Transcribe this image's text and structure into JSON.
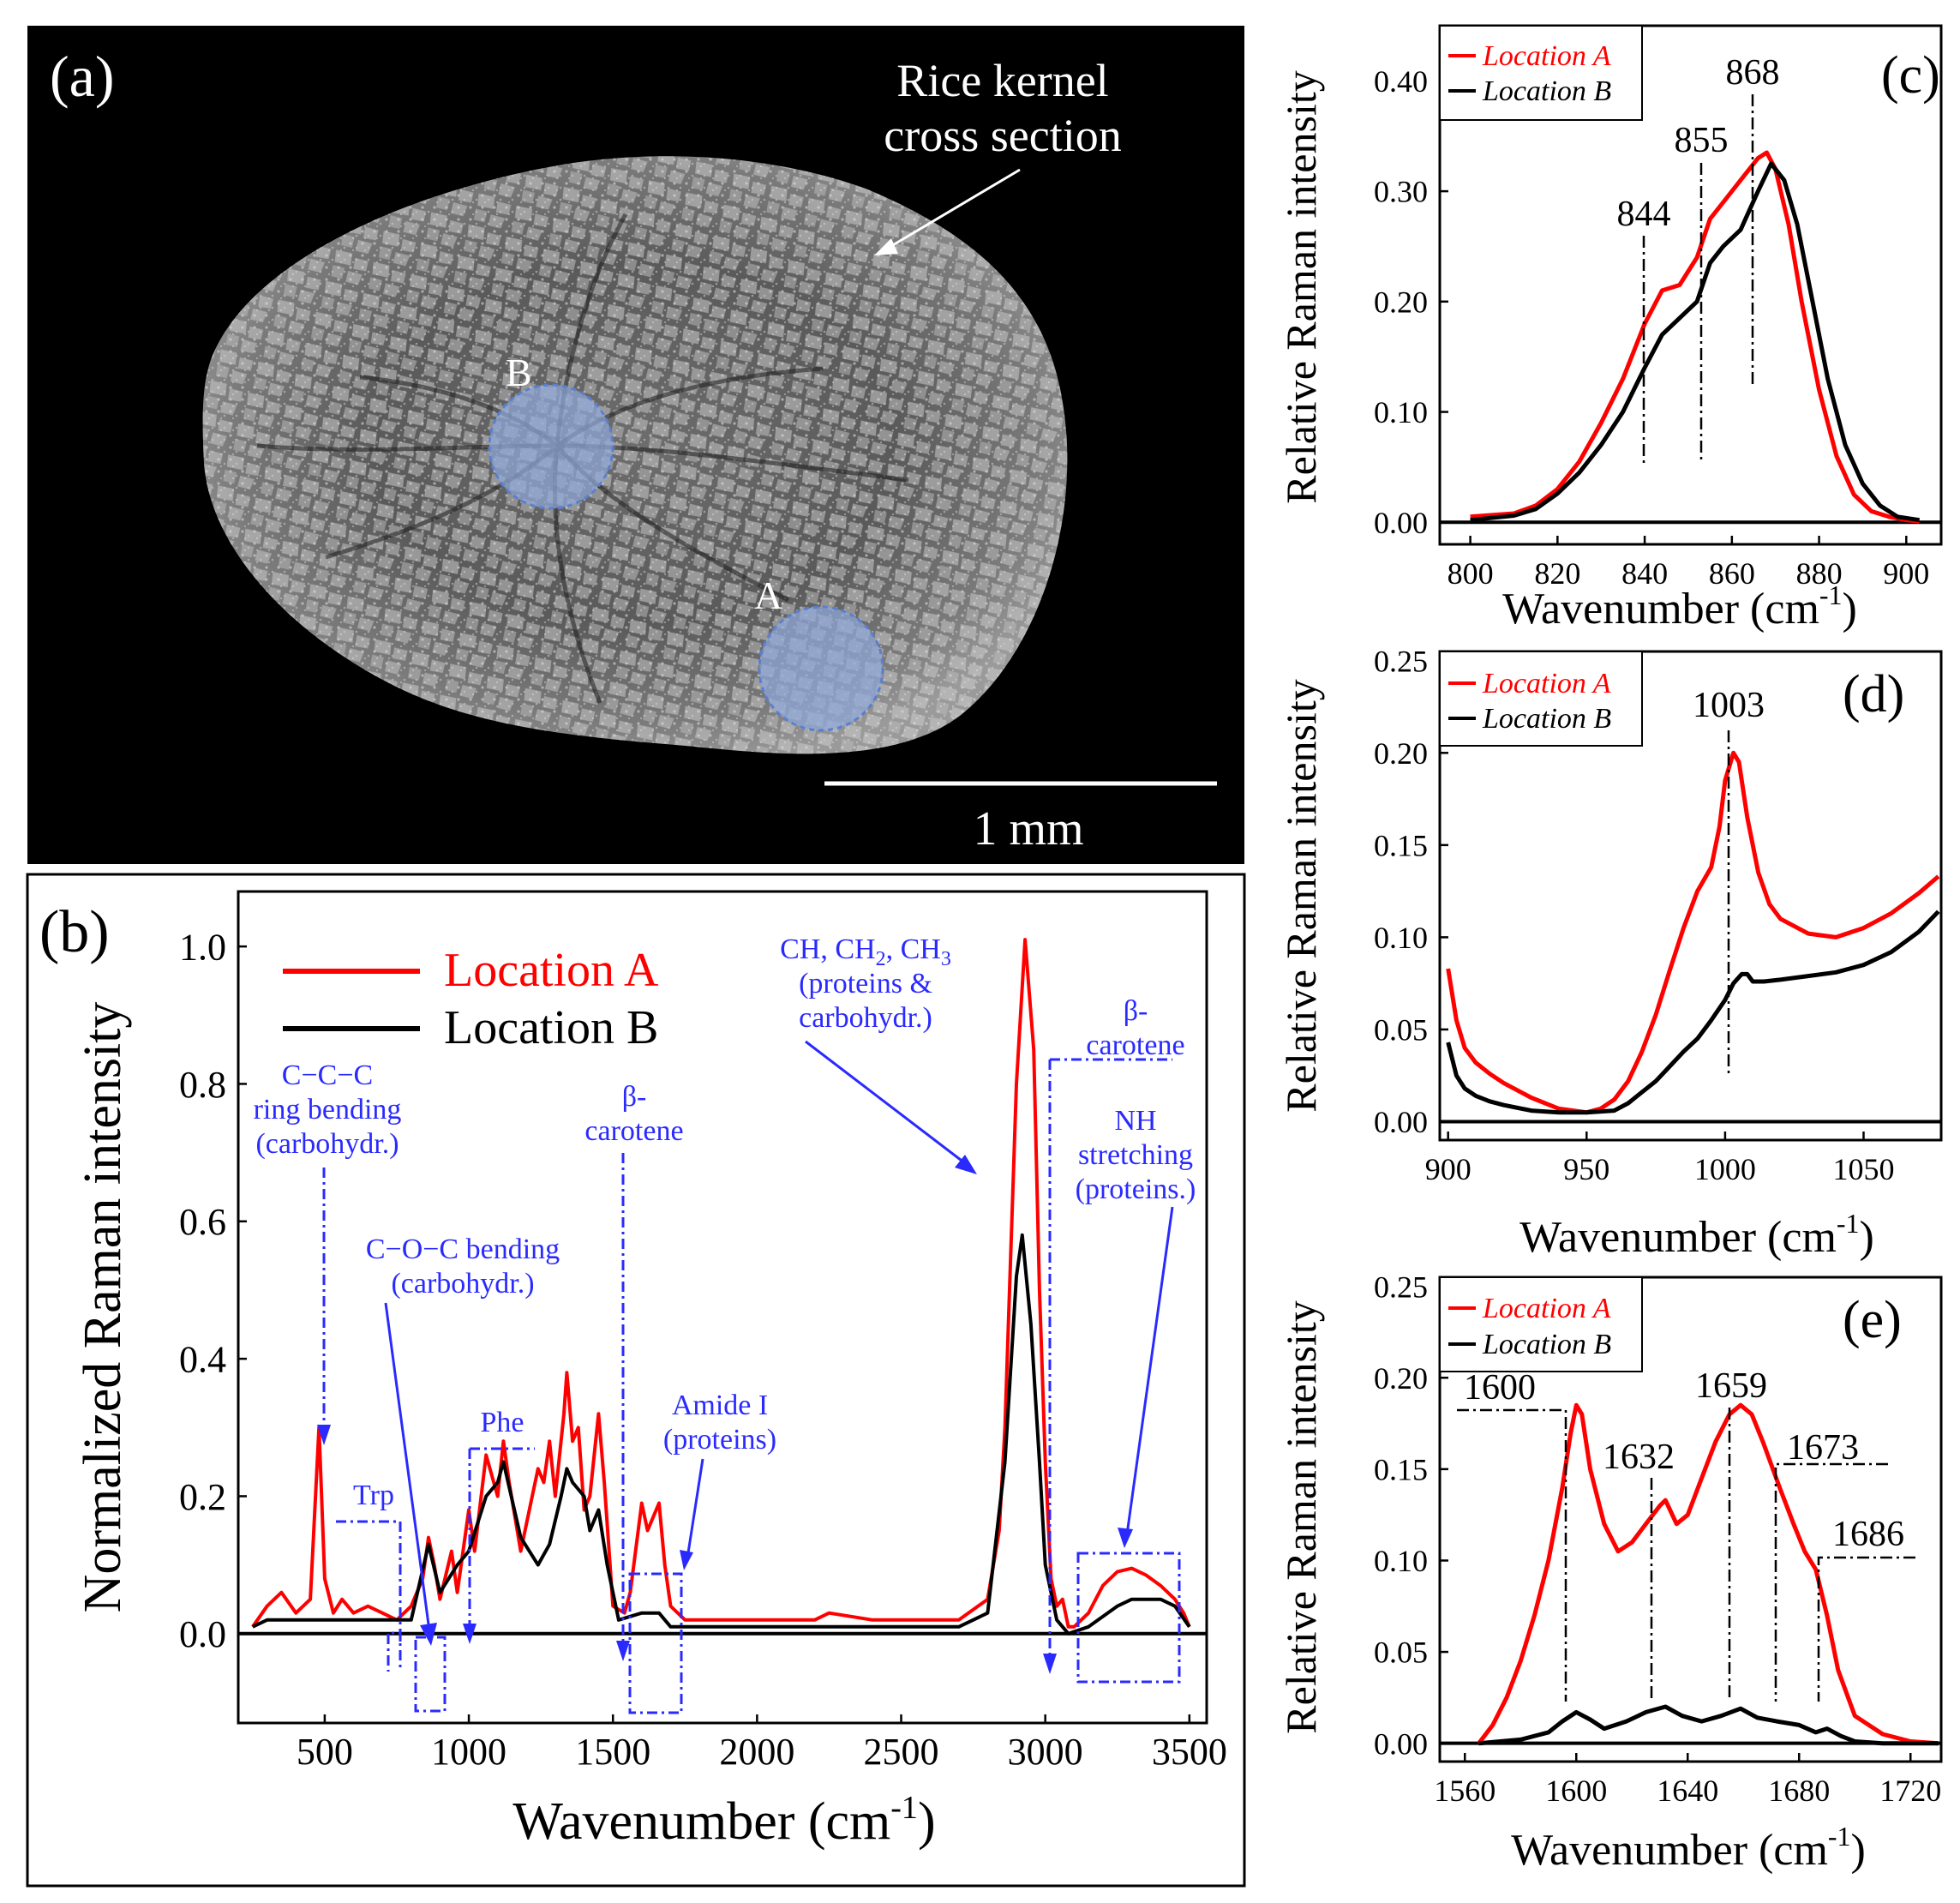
{
  "figure_caption": "Raman spectra of a rice kernel cross section at locations A and B",
  "colors": {
    "location_a": "#ff0000",
    "location_b": "#000000",
    "annotation": "#2a2aff",
    "spot": "#8fa8d8"
  },
  "panel_a": {
    "label": "(a)",
    "annotation": [
      "Rice kernel",
      "cross section"
    ],
    "spot_a_label": "A",
    "spot_b_label": "B",
    "scale_label": "1 mm"
  },
  "chart_data": [
    {
      "id": "b",
      "type": "line",
      "label": "(b)",
      "title": "",
      "xlabel": "Wavenumber (cm",
      "xlabel_sup": "-1",
      "ylabel": "Normalized Raman intensity",
      "xlim": [
        200,
        3560
      ],
      "ylim": [
        -0.13,
        1.08
      ],
      "xticks": [
        500,
        1000,
        1500,
        2000,
        2500,
        3000,
        3500
      ],
      "yticks": [
        0.0,
        0.2,
        0.4,
        0.6,
        0.8,
        1.0
      ],
      "ytick_decimals": 1,
      "legend": {
        "position": "top-left",
        "entries": [
          "Location A",
          "Location B"
        ]
      },
      "series": [
        {
          "name": "Location A",
          "x": [
            250,
            300,
            350,
            400,
            450,
            480,
            500,
            530,
            560,
            600,
            650,
            700,
            750,
            800,
            840,
            860,
            880,
            900,
            940,
            960,
            1000,
            1020,
            1060,
            1100,
            1120,
            1140,
            1180,
            1220,
            1240,
            1260,
            1280,
            1300,
            1330,
            1340,
            1360,
            1380,
            1400,
            1420,
            1450,
            1470,
            1500,
            1540,
            1560,
            1600,
            1620,
            1660,
            1680,
            1700,
            1750,
            1800,
            2000,
            2200,
            2250,
            2400,
            2600,
            2700,
            2800,
            2840,
            2860,
            2880,
            2900,
            2930,
            2960,
            2980,
            3000,
            3020,
            3040,
            3060,
            3080,
            3100,
            3150,
            3200,
            3250,
            3300,
            3350,
            3400,
            3450,
            3480,
            3500
          ],
          "y": [
            0.01,
            0.04,
            0.06,
            0.03,
            0.05,
            0.3,
            0.08,
            0.03,
            0.05,
            0.03,
            0.04,
            0.03,
            0.02,
            0.04,
            0.08,
            0.14,
            0.1,
            0.05,
            0.12,
            0.06,
            0.18,
            0.12,
            0.26,
            0.2,
            0.28,
            0.22,
            0.12,
            0.2,
            0.24,
            0.22,
            0.28,
            0.2,
            0.32,
            0.38,
            0.28,
            0.3,
            0.18,
            0.2,
            0.32,
            0.22,
            0.04,
            0.03,
            0.06,
            0.19,
            0.15,
            0.19,
            0.1,
            0.04,
            0.02,
            0.02,
            0.02,
            0.02,
            0.03,
            0.02,
            0.02,
            0.02,
            0.05,
            0.15,
            0.3,
            0.55,
            0.8,
            1.01,
            0.85,
            0.5,
            0.25,
            0.08,
            0.04,
            0.05,
            0.01,
            0.01,
            0.03,
            0.07,
            0.09,
            0.095,
            0.085,
            0.07,
            0.05,
            0.03,
            0.01
          ]
        },
        {
          "name": "Location B",
          "x": [
            250,
            300,
            400,
            500,
            600,
            700,
            800,
            860,
            900,
            960,
            1000,
            1060,
            1100,
            1120,
            1180,
            1240,
            1280,
            1320,
            1340,
            1360,
            1400,
            1420,
            1450,
            1480,
            1520,
            1600,
            1660,
            1700,
            1800,
            2000,
            2400,
            2700,
            2800,
            2860,
            2900,
            2920,
            2950,
            2980,
            3000,
            3040,
            3080,
            3150,
            3250,
            3300,
            3350,
            3400,
            3450,
            3500
          ],
          "y": [
            0.01,
            0.02,
            0.02,
            0.02,
            0.02,
            0.02,
            0.02,
            0.13,
            0.06,
            0.1,
            0.12,
            0.2,
            0.22,
            0.25,
            0.14,
            0.1,
            0.13,
            0.2,
            0.24,
            0.22,
            0.2,
            0.15,
            0.18,
            0.1,
            0.02,
            0.03,
            0.03,
            0.01,
            0.01,
            0.01,
            0.01,
            0.01,
            0.03,
            0.25,
            0.52,
            0.58,
            0.45,
            0.25,
            0.1,
            0.02,
            0.0,
            0.01,
            0.04,
            0.05,
            0.05,
            0.05,
            0.04,
            0.01
          ]
        }
      ],
      "annotations": [
        {
          "lines": [
            "C−C−C",
            "ring bending",
            "(carbohydr.)"
          ]
        },
        {
          "lines": [
            "C−O−C bending",
            "(carbohydr.)"
          ]
        },
        {
          "lines": [
            "Trp"
          ]
        },
        {
          "lines": [
            "Phe"
          ]
        },
        {
          "lines": [
            "β-",
            "carotene"
          ]
        },
        {
          "lines": [
            "Amide I",
            "(proteins)"
          ]
        },
        {
          "lines": [
            "CH, CH",
            "2",
            ", CH",
            "3",
            "(proteins &",
            "carbohydr.)"
          ]
        },
        {
          "lines": [
            "β-",
            "carotene"
          ]
        },
        {
          "lines": [
            "NH",
            "stretching",
            "(proteins.)"
          ]
        }
      ]
    },
    {
      "id": "c",
      "type": "line",
      "label": "(c)",
      "title": "",
      "xlabel": "Wavenumber (cm",
      "xlabel_sup": "-1",
      "ylabel": "Relative Raman intensity",
      "xlim": [
        793,
        908
      ],
      "ylim": [
        -0.02,
        0.45
      ],
      "xticks": [
        800,
        820,
        840,
        860,
        880,
        900
      ],
      "yticks": [
        0.0,
        0.1,
        0.2,
        0.3,
        0.4
      ],
      "ytick_decimals": 2,
      "legend": {
        "position": "top-left",
        "entries": [
          "Location A",
          "Location B"
        ]
      },
      "series": [
        {
          "name": "Location A",
          "x": [
            800,
            810,
            815,
            820,
            825,
            830,
            835,
            840,
            844,
            848,
            852,
            855,
            858,
            862,
            866,
            868,
            870,
            873,
            876,
            880,
            884,
            888,
            892,
            896,
            900,
            903
          ],
          "y": [
            0.005,
            0.008,
            0.015,
            0.03,
            0.055,
            0.09,
            0.13,
            0.18,
            0.21,
            0.215,
            0.24,
            0.275,
            0.29,
            0.31,
            0.33,
            0.335,
            0.32,
            0.27,
            0.2,
            0.12,
            0.06,
            0.025,
            0.01,
            0.005,
            0.002,
            0.001
          ]
        },
        {
          "name": "Location B",
          "x": [
            800,
            810,
            815,
            820,
            825,
            830,
            835,
            840,
            844,
            848,
            852,
            855,
            858,
            862,
            866,
            869,
            872,
            875,
            878,
            882,
            886,
            890,
            894,
            898,
            903
          ],
          "y": [
            0.002,
            0.006,
            0.012,
            0.026,
            0.045,
            0.07,
            0.1,
            0.14,
            0.17,
            0.185,
            0.2,
            0.235,
            0.25,
            0.265,
            0.3,
            0.325,
            0.31,
            0.27,
            0.21,
            0.13,
            0.07,
            0.035,
            0.015,
            0.005,
            0.002
          ]
        }
      ],
      "peaks": [
        "844",
        "855",
        "868"
      ]
    },
    {
      "id": "d",
      "type": "line",
      "label": "(d)",
      "title": "",
      "xlabel": "Wavenumber (cm",
      "xlabel_sup": "-1",
      "ylabel": "Relative Raman intensity",
      "xlim": [
        897,
        1078
      ],
      "ylim": [
        -0.01,
        0.255
      ],
      "xticks": [
        900,
        950,
        1000,
        1050
      ],
      "yticks": [
        0.0,
        0.05,
        0.1,
        0.15,
        0.2,
        0.25
      ],
      "ytick_decimals": 2,
      "legend": {
        "position": "top-left",
        "entries": [
          "Location A",
          "Location B"
        ]
      },
      "series": [
        {
          "name": "Location A",
          "x": [
            900,
            903,
            906,
            910,
            915,
            920,
            930,
            940,
            950,
            955,
            960,
            965,
            970,
            975,
            980,
            985,
            990,
            995,
            998,
            1000,
            1003,
            1005,
            1008,
            1012,
            1016,
            1020,
            1030,
            1040,
            1050,
            1060,
            1070,
            1077
          ],
          "y": [
            0.083,
            0.055,
            0.04,
            0.032,
            0.026,
            0.021,
            0.013,
            0.007,
            0.005,
            0.007,
            0.012,
            0.022,
            0.038,
            0.058,
            0.082,
            0.105,
            0.125,
            0.138,
            0.16,
            0.185,
            0.2,
            0.195,
            0.165,
            0.135,
            0.118,
            0.11,
            0.102,
            0.1,
            0.105,
            0.113,
            0.124,
            0.133
          ]
        },
        {
          "name": "Location B",
          "x": [
            900,
            903,
            906,
            910,
            915,
            920,
            930,
            940,
            950,
            960,
            965,
            970,
            975,
            980,
            985,
            990,
            995,
            1000,
            1003,
            1006,
            1008,
            1010,
            1014,
            1020,
            1030,
            1040,
            1050,
            1060,
            1070,
            1077
          ],
          "y": [
            0.043,
            0.025,
            0.018,
            0.014,
            0.011,
            0.009,
            0.006,
            0.005,
            0.005,
            0.006,
            0.01,
            0.016,
            0.022,
            0.03,
            0.038,
            0.045,
            0.055,
            0.066,
            0.075,
            0.08,
            0.08,
            0.076,
            0.076,
            0.077,
            0.079,
            0.081,
            0.085,
            0.092,
            0.103,
            0.114
          ]
        }
      ],
      "peaks": [
        "1003"
      ]
    },
    {
      "id": "e",
      "type": "line",
      "label": "(e)",
      "title": "",
      "xlabel": "Wavenumber (cm",
      "xlabel_sup": "-1",
      "ylabel": "Relative Raman intensity",
      "xlim": [
        1551,
        1731
      ],
      "ylim": [
        -0.01,
        0.255
      ],
      "xticks": [
        1560,
        1600,
        1640,
        1680,
        1720
      ],
      "yticks": [
        0.0,
        0.05,
        0.1,
        0.15,
        0.2,
        0.25
      ],
      "ytick_decimals": 2,
      "legend": {
        "position": "top-left",
        "entries": [
          "Location A",
          "Location B"
        ]
      },
      "series": [
        {
          "name": "Location A",
          "x": [
            1565,
            1570,
            1575,
            1580,
            1585,
            1590,
            1595,
            1598,
            1600,
            1602,
            1605,
            1610,
            1615,
            1620,
            1625,
            1630,
            1632,
            1636,
            1640,
            1645,
            1650,
            1655,
            1659,
            1663,
            1667,
            1673,
            1678,
            1682,
            1686,
            1690,
            1694,
            1700,
            1710,
            1720,
            1730
          ],
          "y": [
            0.0,
            0.01,
            0.025,
            0.045,
            0.07,
            0.1,
            0.14,
            0.17,
            0.185,
            0.18,
            0.15,
            0.12,
            0.105,
            0.11,
            0.12,
            0.13,
            0.133,
            0.12,
            0.125,
            0.145,
            0.165,
            0.18,
            0.185,
            0.18,
            0.165,
            0.14,
            0.12,
            0.105,
            0.095,
            0.07,
            0.04,
            0.015,
            0.005,
            0.001,
            0.0
          ]
        },
        {
          "name": "Location B",
          "x": [
            1565,
            1580,
            1590,
            1595,
            1600,
            1605,
            1610,
            1618,
            1625,
            1632,
            1638,
            1645,
            1652,
            1659,
            1665,
            1672,
            1680,
            1686,
            1690,
            1695,
            1700,
            1710,
            1730
          ],
          "y": [
            0.0,
            0.002,
            0.006,
            0.012,
            0.017,
            0.013,
            0.008,
            0.012,
            0.017,
            0.02,
            0.015,
            0.012,
            0.015,
            0.019,
            0.014,
            0.012,
            0.01,
            0.006,
            0.008,
            0.004,
            0.001,
            0.0,
            0.0
          ]
        }
      ],
      "peaks": [
        "1600",
        "1632",
        "1659",
        "1673",
        "1686"
      ]
    }
  ]
}
